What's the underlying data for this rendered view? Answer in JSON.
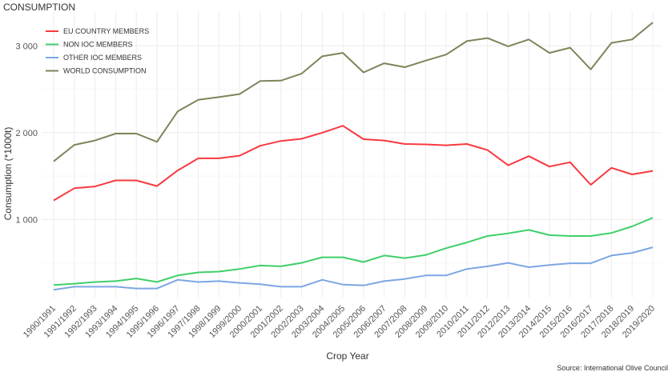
{
  "chart_data": {
    "type": "line",
    "title": "CONSUMPTION",
    "xlabel": "Crop Year",
    "ylabel": "Consumption (*1000t)",
    "source": "Source: International Olive Council",
    "ylim": [
      100,
      3400
    ],
    "yticks": [
      1000,
      2000,
      3000
    ],
    "ytick_labels": [
      "1 000",
      "2 000",
      "3 000"
    ],
    "grid": true,
    "legend_position": "top-left",
    "categories": [
      "1990/1991",
      "1991/1992",
      "1992/1993",
      "1993/1994",
      "1994/1995",
      "1995/1996",
      "1996/1997",
      "1997/1998",
      "1998/1999",
      "1999/2000",
      "2000/2001",
      "2001/2002",
      "2002/2003",
      "2003/2004",
      "2004/2005",
      "2005/2006",
      "2006/2007",
      "2007/2008",
      "2008/2009",
      "2009/2010",
      "2010/2011",
      "2011/2012",
      "2012/2013",
      "2013/2014",
      "2014/2015",
      "2015/2016",
      "2016/2017",
      "2017/2018",
      "2018/2019",
      "2019/2020"
    ],
    "series": [
      {
        "name": "EU COUNTRY MEMBERS",
        "color": "#f8393f",
        "values": [
          1220,
          1360,
          1380,
          1450,
          1450,
          1385,
          1565,
          1705,
          1705,
          1735,
          1850,
          1905,
          1930,
          2000,
          2080,
          1925,
          1910,
          1870,
          1865,
          1855,
          1870,
          1800,
          1625,
          1730,
          1610,
          1660,
          1400,
          1595,
          1520,
          1560
        ]
      },
      {
        "name": "NON IOC MEMBERS",
        "color": "#3fcf6a",
        "values": [
          245,
          260,
          280,
          290,
          320,
          280,
          355,
          390,
          400,
          430,
          470,
          460,
          500,
          565,
          565,
          510,
          585,
          555,
          590,
          670,
          735,
          810,
          840,
          880,
          820,
          810,
          810,
          845,
          920,
          1020
        ]
      },
      {
        "name": "OTHER IOC MEMBERS",
        "color": "#7da6e3",
        "values": [
          190,
          225,
          225,
          225,
          205,
          205,
          305,
          280,
          290,
          270,
          255,
          225,
          225,
          305,
          250,
          240,
          290,
          315,
          355,
          355,
          430,
          460,
          500,
          450,
          475,
          495,
          495,
          585,
          615,
          680
        ]
      },
      {
        "name": "WORLD CONSUMPTION",
        "color": "#7b865a",
        "values": [
          1670,
          1860,
          1910,
          1990,
          1990,
          1895,
          2245,
          2380,
          2410,
          2445,
          2595,
          2600,
          2680,
          2880,
          2920,
          2695,
          2800,
          2755,
          2830,
          2900,
          3055,
          3090,
          2995,
          3075,
          2920,
          2980,
          2730,
          3035,
          3075,
          3270
        ]
      }
    ]
  }
}
